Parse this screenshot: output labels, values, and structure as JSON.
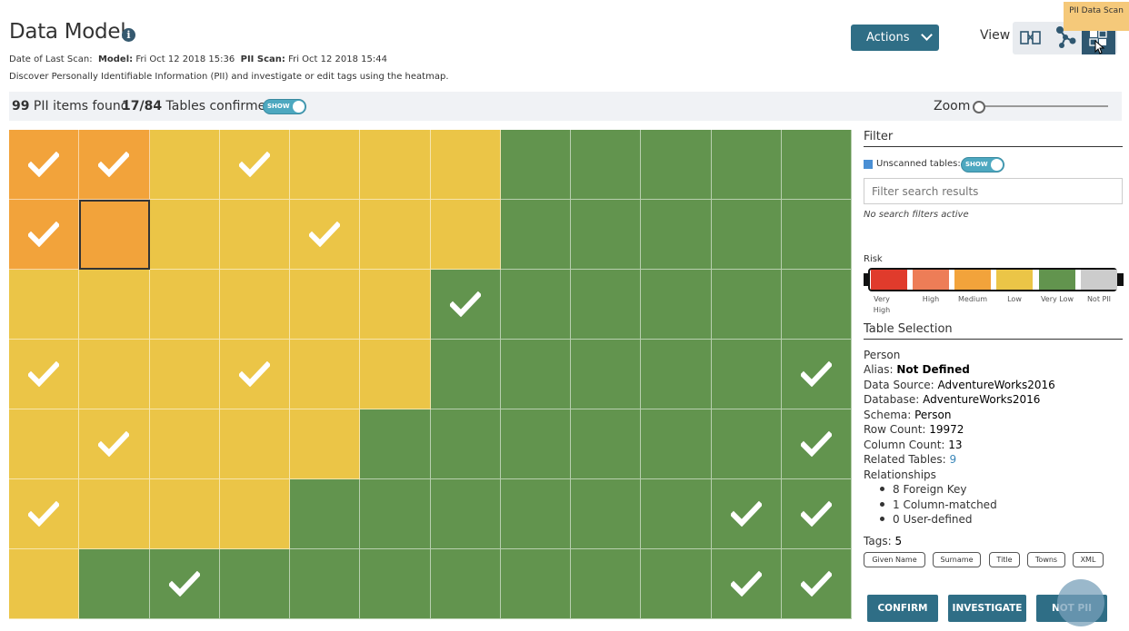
{
  "header": {
    "title": "Data Model",
    "scan_prefix": "Date of Last Scan:",
    "model_label": "Model:",
    "model_date": "Fri Oct 12 2018 15:36",
    "pii_label": "PII Scan:",
    "pii_date": "Fri Oct 12 2018 15:44",
    "description": "Discover Personally Identifiable Information (PII) and investigate or edit tags using the heatmap."
  },
  "toolbar": {
    "actions_label": "Actions",
    "view_label": "View",
    "tooltip": "PII Data Scan",
    "view_icons": [
      "mapping-icon",
      "graph-icon",
      "heatmap-icon"
    ]
  },
  "summary": {
    "pii_count": "99",
    "pii_text": " PII items found",
    "tables_confirmed": "17/84",
    "tables_text": " Tables confirmed",
    "toggle_label": "SHOW",
    "zoom_label": "Zoom"
  },
  "colors": {
    "very_high": "#e03b2c",
    "high": "#ed7d57",
    "medium": "#f2a33b",
    "low": "#ebc547",
    "very_low": "#62944e",
    "not_pii": "#cccccc"
  },
  "heatmap": {
    "rows": [
      [
        "M",
        "M",
        "L",
        "L",
        "L",
        "L",
        "L",
        "V",
        "V",
        "V",
        "V",
        "V"
      ],
      [
        "M",
        "M",
        "L",
        "L",
        "L",
        "L",
        "L",
        "V",
        "V",
        "V",
        "V",
        "V"
      ],
      [
        "L",
        "L",
        "L",
        "L",
        "L",
        "L",
        "V",
        "V",
        "V",
        "V",
        "V",
        "V"
      ],
      [
        "L",
        "L",
        "L",
        "L",
        "L",
        "L",
        "V",
        "V",
        "V",
        "V",
        "V",
        "V"
      ],
      [
        "L",
        "L",
        "L",
        "L",
        "L",
        "V",
        "V",
        "V",
        "V",
        "V",
        "V",
        "V"
      ],
      [
        "L",
        "L",
        "L",
        "L",
        "V",
        "V",
        "V",
        "V",
        "V",
        "V",
        "V",
        "V"
      ],
      [
        "L",
        "V",
        "V",
        "V",
        "V",
        "V",
        "V",
        "V",
        "V",
        "V",
        "V",
        "V"
      ]
    ],
    "checked": [
      [
        0,
        0
      ],
      [
        0,
        1
      ],
      [
        0,
        3
      ],
      [
        1,
        0
      ],
      [
        1,
        4
      ],
      [
        2,
        6
      ],
      [
        3,
        0
      ],
      [
        3,
        3
      ],
      [
        3,
        11
      ],
      [
        4,
        1
      ],
      [
        4,
        11
      ],
      [
        5,
        0
      ],
      [
        5,
        10
      ],
      [
        5,
        11
      ],
      [
        6,
        2
      ],
      [
        6,
        10
      ],
      [
        6,
        11
      ]
    ],
    "selected": [
      1,
      1
    ]
  },
  "filter": {
    "title": "Filter",
    "unscanned_label": "Unscanned tables:",
    "toggle_label": "SHOW",
    "search_placeholder": "Filter search results",
    "no_filters": "No search filters active"
  },
  "risk": {
    "label": "Risk",
    "levels": [
      "Very High",
      "High",
      "Medium",
      "Low",
      "Very Low",
      "Not PII"
    ]
  },
  "table_selection": {
    "title": "Table Selection",
    "name": "Person",
    "alias_label": "Alias: ",
    "alias_value": "Not Defined",
    "data_source_label": "Data Source: ",
    "data_source_value": "AdventureWorks2016",
    "database_label": "Database: ",
    "database_value": "AdventureWorks2016",
    "schema_label": "Schema: ",
    "schema_value": "Person",
    "row_count_label": "Row Count: ",
    "row_count_value": "19972",
    "column_count_label": "Column Count: ",
    "column_count_value": "13",
    "related_label": "Related Tables: ",
    "related_value": "9",
    "relationships_label": "Relationships",
    "relationships": [
      "8 Foreign Key",
      "1 Column-matched",
      "0 User-defined"
    ],
    "tags_label": "Tags: ",
    "tags_count": "5",
    "tags": [
      "Given Name",
      "Surname",
      "Title",
      "Towns",
      "XML"
    ]
  },
  "buttons": {
    "confirm": "CONFIRM",
    "investigate": "INVESTIGATE",
    "not_pii": "NOT PII"
  }
}
